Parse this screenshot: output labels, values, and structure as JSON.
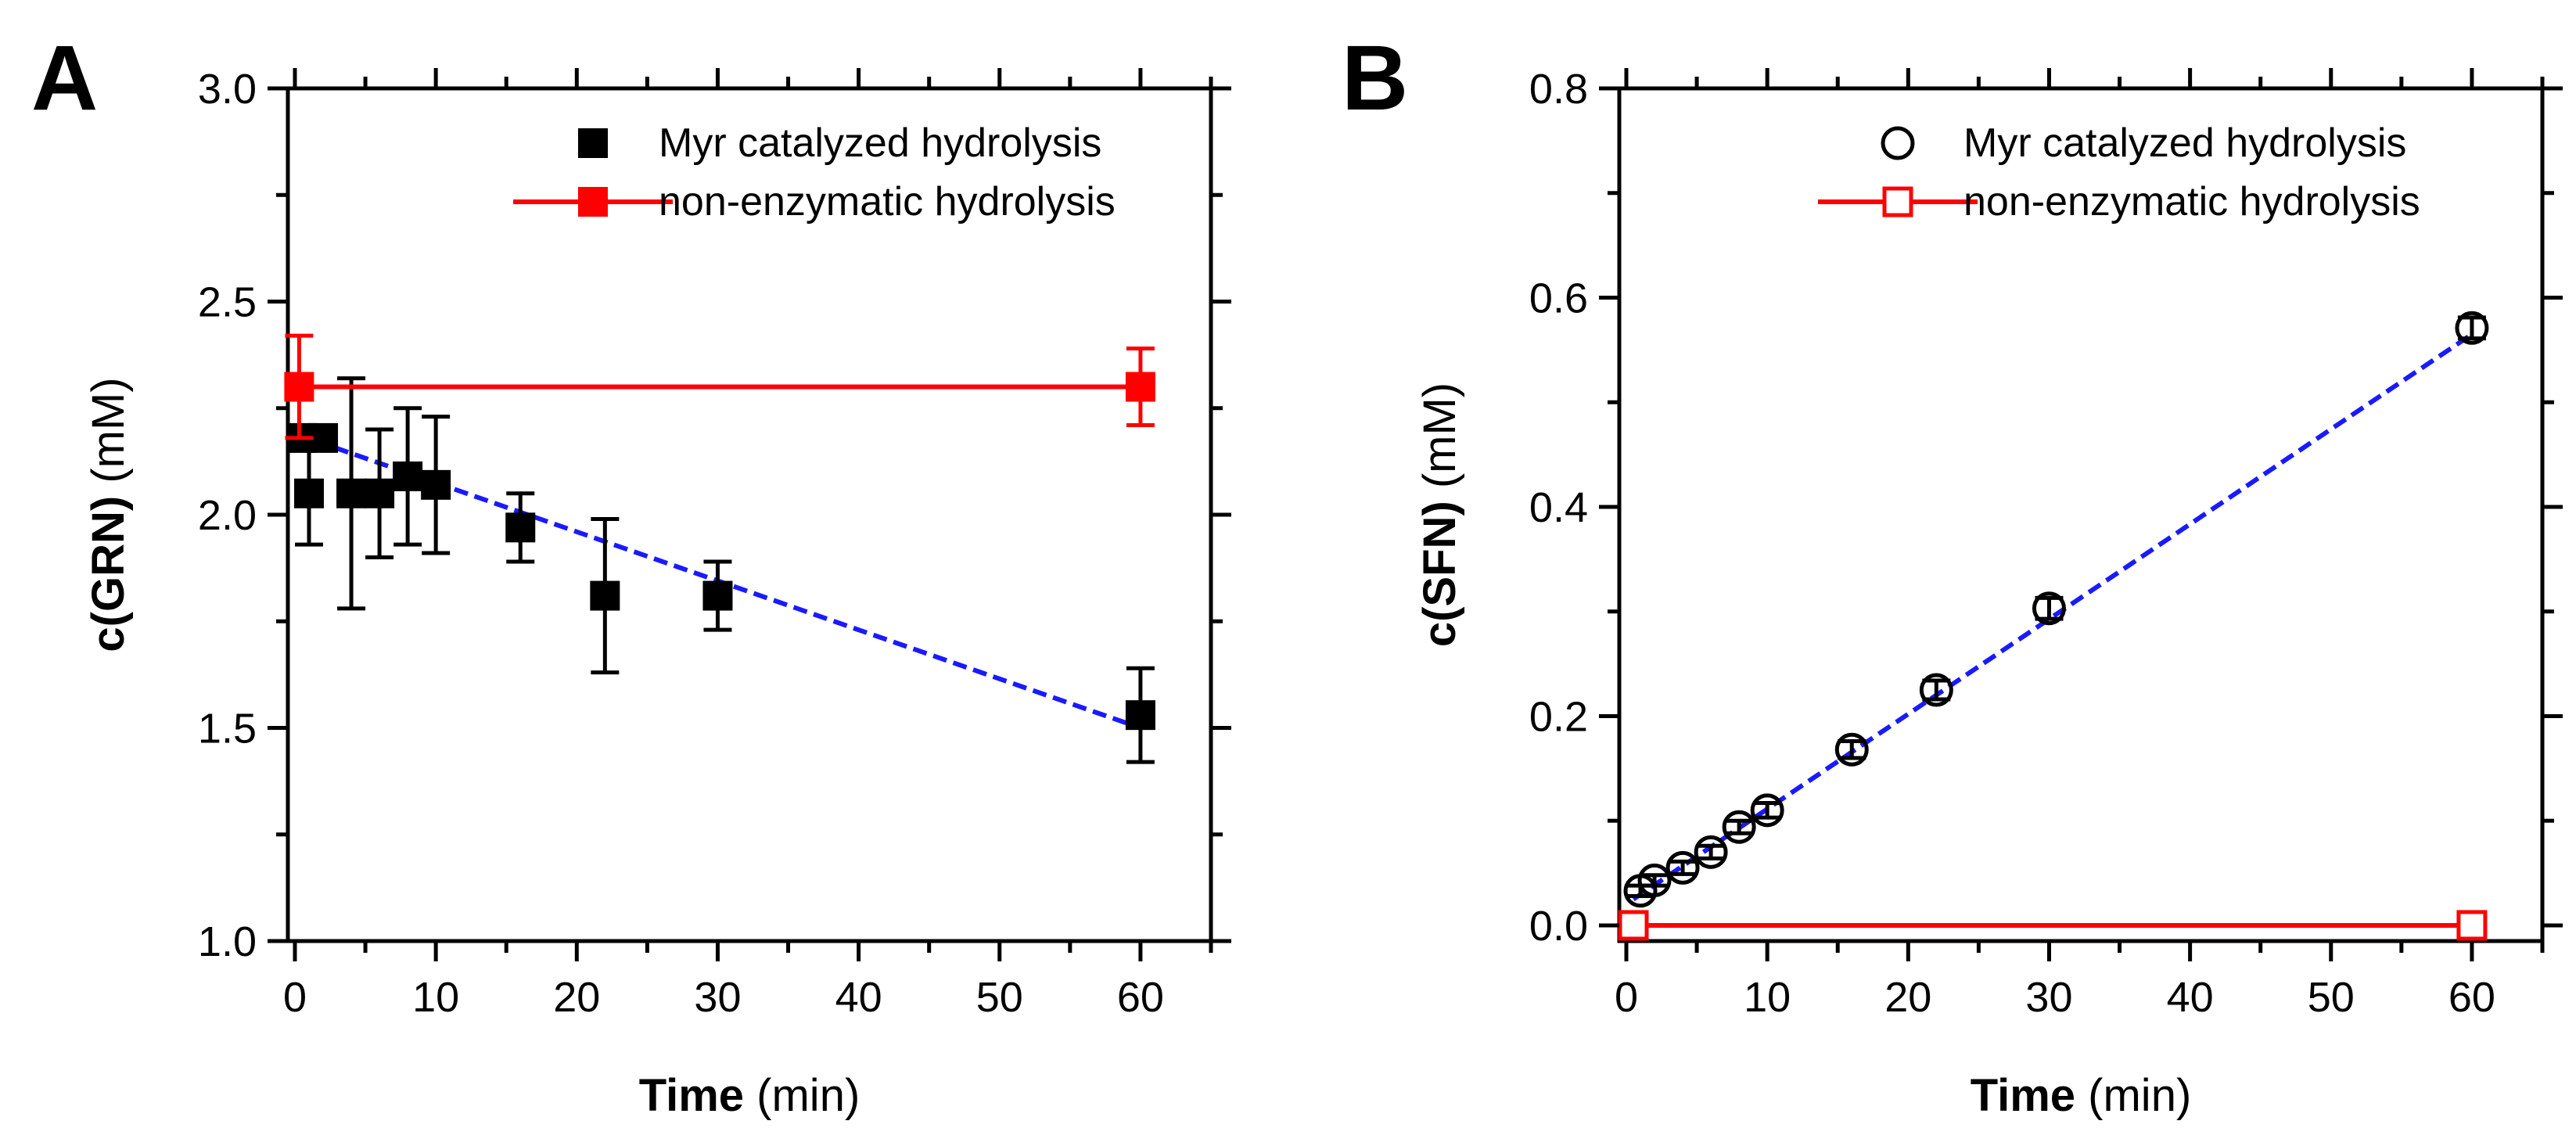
{
  "chart_data": [
    {
      "panel_label": "A",
      "type": "scatter",
      "xlabel": {
        "bold": "Time",
        "unit": " (min)"
      },
      "ylabel": {
        "bold": "c(GRN)",
        "unit": " (mM)"
      },
      "xlim": [
        -0.5,
        65
      ],
      "ylim": [
        1.0,
        3.0
      ],
      "xticks": [
        0,
        10,
        20,
        30,
        40,
        50,
        60
      ],
      "yticks": [
        1.0,
        1.5,
        2.0,
        2.5,
        3.0
      ],
      "ytick_labels": [
        "1.0",
        "1.5",
        "2.0",
        "2.5",
        "3.0"
      ],
      "legend_position": "top-right",
      "series": [
        {
          "name": "Myr catalyzed hydrolysis",
          "color": "#000000",
          "marker": "square-filled",
          "line": false,
          "x": [
            0.5,
            1,
            2,
            4,
            6,
            8,
            10,
            16,
            22,
            30,
            60
          ],
          "y": [
            2.18,
            2.05,
            2.18,
            2.05,
            2.05,
            2.09,
            2.07,
            1.97,
            1.81,
            1.81,
            1.53
          ],
          "err": [
            0.0,
            0.12,
            0.0,
            0.27,
            0.15,
            0.16,
            0.16,
            0.08,
            0.18,
            0.08,
            0.11
          ]
        },
        {
          "name": "non-enzymatic hydrolysis",
          "color": "#ff0000",
          "marker": "square-filled",
          "line": true,
          "x": [
            0.3,
            60
          ],
          "y": [
            2.3,
            2.3
          ],
          "err": [
            0.12,
            0.09
          ]
        }
      ],
      "fit": {
        "color": "#1a1aff",
        "style": "dashed",
        "x": [
          0,
          60
        ],
        "y": [
          2.19,
          1.5
        ]
      }
    },
    {
      "panel_label": "B",
      "type": "scatter",
      "xlabel": {
        "bold": "Time",
        "unit": " (min)"
      },
      "ylabel": {
        "bold": "c(SFN)",
        "unit": " (mM)"
      },
      "xlim": [
        -0.5,
        65
      ],
      "ylim": [
        -0.015,
        0.8
      ],
      "xticks": [
        0,
        10,
        20,
        30,
        40,
        50,
        60
      ],
      "yticks": [
        0.0,
        0.2,
        0.4,
        0.6,
        0.8
      ],
      "ytick_labels": [
        "0.0",
        "0.2",
        "0.4",
        "0.6",
        "0.8"
      ],
      "legend_position": "top-right",
      "series": [
        {
          "name": "Myr catalyzed hydrolysis",
          "color": "#000000",
          "marker": "circle-open",
          "line": false,
          "x": [
            1,
            2,
            4,
            6,
            8,
            10,
            16,
            22,
            30,
            60
          ],
          "y": [
            0.033,
            0.043,
            0.055,
            0.07,
            0.094,
            0.11,
            0.168,
            0.225,
            0.303,
            0.571
          ],
          "err": [
            0.005,
            0.005,
            0.006,
            0.006,
            0.006,
            0.007,
            0.008,
            0.009,
            0.01,
            0.01
          ]
        },
        {
          "name": "non-enzymatic hydrolysis",
          "color": "#ff0000",
          "marker": "square-open",
          "line": true,
          "x": [
            0.5,
            60
          ],
          "y": [
            0.0,
            0.0
          ],
          "err": [
            0,
            0
          ]
        }
      ],
      "fit": {
        "color": "#1a1aff",
        "style": "dashed",
        "x": [
          0.5,
          60
        ],
        "y": [
          0.025,
          0.565
        ]
      }
    }
  ]
}
